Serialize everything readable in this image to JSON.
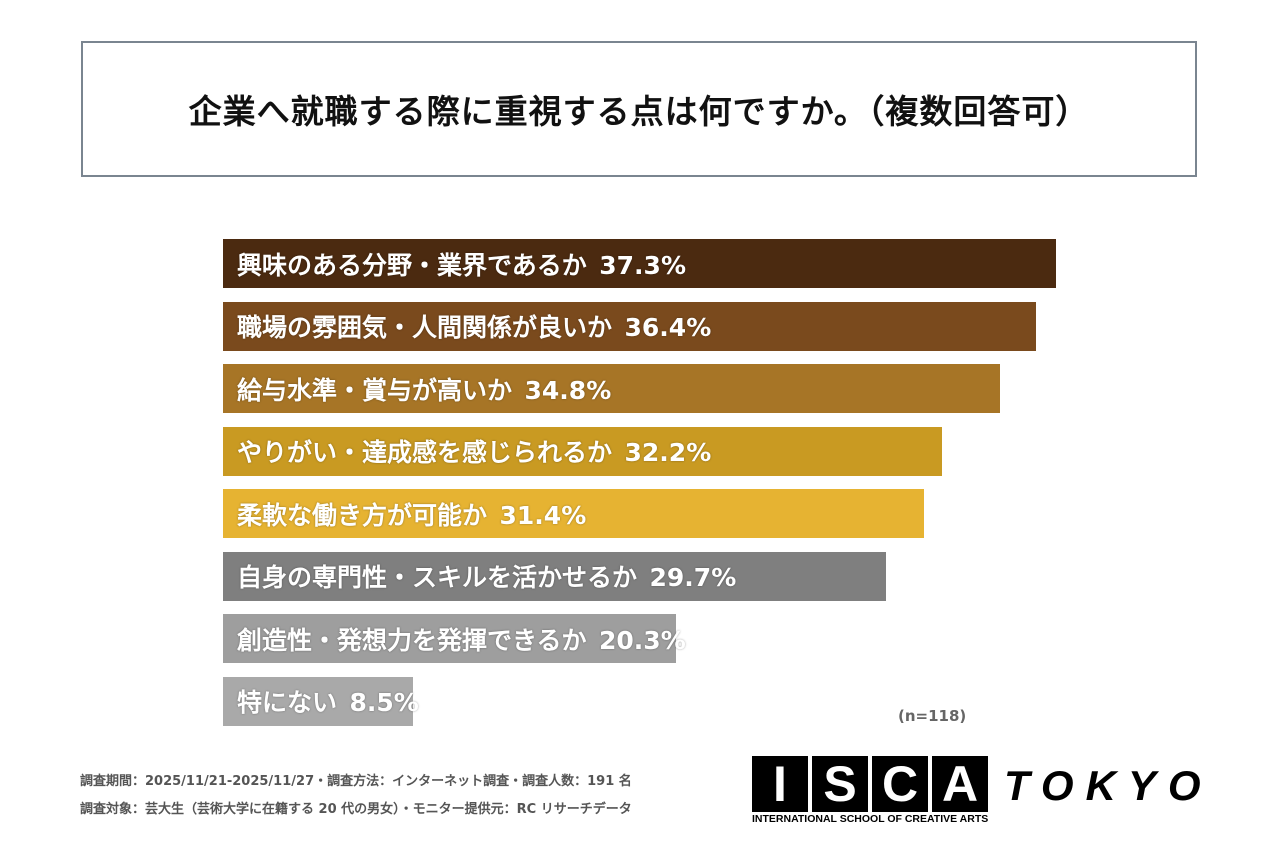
{
  "chart_data": {
    "type": "bar",
    "orientation": "horizontal",
    "title": "企業へ就職する際に重視する点は何ですか。（複数回答可）",
    "categories": [
      "興味のある分野・業界であるか",
      "職場の雰囲気・人間関係が良いか",
      "給与水準・賞与が高いか",
      "やりがい・達成感を感じられるか",
      "柔軟な働き方が可能か",
      "自身の専門性・スキルを活かせるか",
      "創造性・発想力を発揮できるか",
      "特にない"
    ],
    "values": [
      37.3,
      36.4,
      34.8,
      32.2,
      31.4,
      29.7,
      20.3,
      8.5
    ],
    "value_labels": [
      "37.3%",
      "36.4%",
      "34.8%",
      "32.2%",
      "31.4%",
      "29.7%",
      "20.3%",
      "8.5%"
    ],
    "colors": [
      "#4b2a10",
      "#7a4a1d",
      "#a77526",
      "#c99a22",
      "#e6b332",
      "#7f7f7f",
      "#9e9e9e",
      "#a9a9a9"
    ],
    "xlim": [
      0,
      37.3
    ],
    "grid": false,
    "legend": "none"
  },
  "sample_size": "(n=118)",
  "footer": {
    "line1": "調査期間：2025/11/21-2025/11/27・調査方法：インターネット調査・調査人数：191 名",
    "line2": "調査対象：芸大生（芸術大学に在籍する 20 代の男女）・モニター提供元：RC リサーチデータ"
  },
  "logo": {
    "letters": [
      "I",
      "S",
      "C",
      "A"
    ],
    "tokyo": "TOKYO",
    "subtitle": "INTERNATIONAL SCHOOL OF CREATIVE ARTS"
  }
}
